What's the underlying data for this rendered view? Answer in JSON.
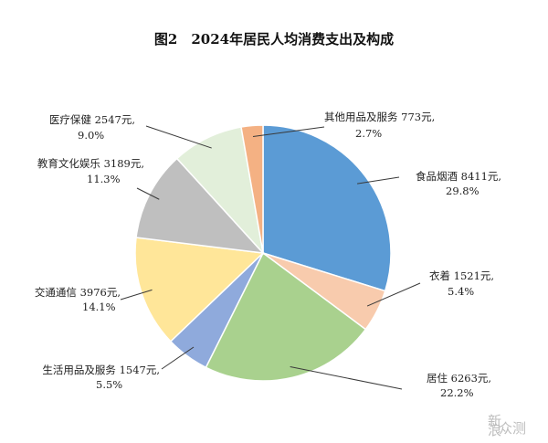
{
  "chart_data": {
    "type": "pie",
    "title": "图2　2024年居民人均消费支出及构成",
    "slices": [
      {
        "name": "食品烟酒",
        "value_text": "8411元,",
        "pct_text": "29.8%",
        "value": 8411,
        "percent": 29.8,
        "color": "#5b9bd5"
      },
      {
        "name": "衣着",
        "value_text": "1521元,",
        "pct_text": "5.4%",
        "value": 1521,
        "percent": 5.4,
        "color": "#f8cbad"
      },
      {
        "name": "居住",
        "value_text": "6263元,",
        "pct_text": "22.2%",
        "value": 6263,
        "percent": 22.2,
        "color": "#a9d18e"
      },
      {
        "name": "生活用品及服务",
        "value_text": "1547元,",
        "pct_text": "5.5%",
        "value": 1547,
        "percent": 5.5,
        "color": "#8faadc"
      },
      {
        "name": "交通通信",
        "value_text": "3976元,",
        "pct_text": "14.1%",
        "value": 3976,
        "percent": 14.1,
        "color": "#ffe699"
      },
      {
        "name": "教育文化娱乐",
        "value_text": "3189元,",
        "pct_text": "11.3%",
        "value": 3189,
        "percent": 11.3,
        "color": "#bfbfbf"
      },
      {
        "name": "医疗保健",
        "value_text": "2547元,",
        "pct_text": "9.0%",
        "value": 2547,
        "percent": 9.0,
        "color": "#e2efda"
      },
      {
        "name": "其他用品及服务",
        "value_text": "773元,",
        "pct_text": "2.7%",
        "value": 773,
        "percent": 2.7,
        "color": "#f4b183"
      }
    ]
  },
  "watermark": {
    "small_text": "新\n浪",
    "text": "众测"
  }
}
